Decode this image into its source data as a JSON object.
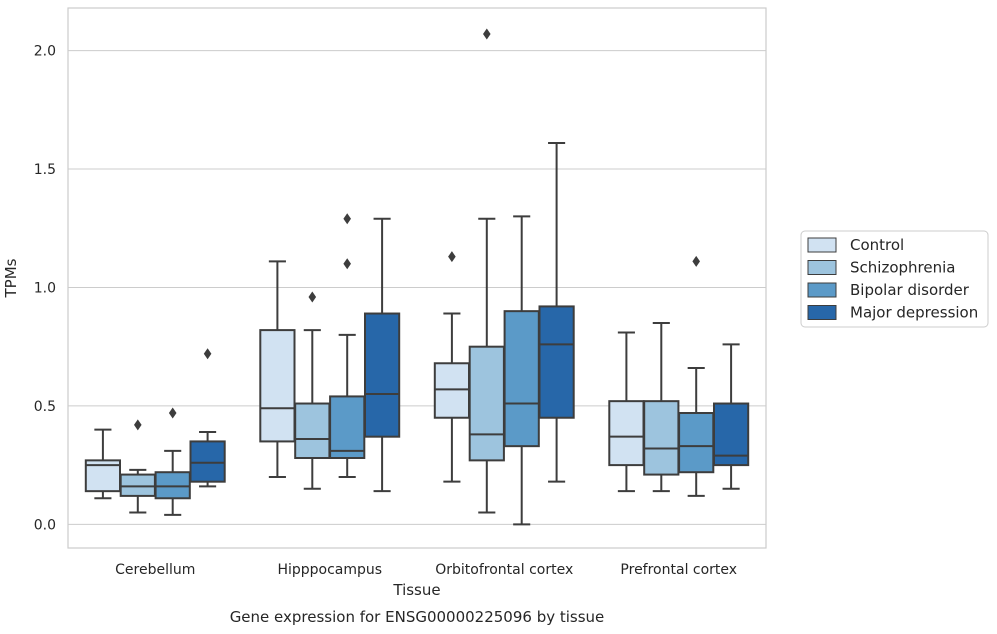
{
  "caption": "Gene expression for ENSG00000225096 by tissue",
  "chart_data": {
    "type": "boxplot",
    "xlabel": "Tissue",
    "ylabel": "TPMs",
    "ylim": [
      -0.1,
      2.18
    ],
    "yticks": [
      "0.0",
      "0.5",
      "1.0",
      "1.5",
      "2.0"
    ],
    "categories": [
      "Cerebellum",
      "Hipppocampus",
      "Orbitofrontal cortex",
      "Prefrontal cortex"
    ],
    "grid": true,
    "legend_position": "right",
    "series": [
      {
        "name": "Control",
        "color": "#d1e2f2",
        "boxes": [
          {
            "whislo": 0.11,
            "q1": 0.14,
            "med": 0.25,
            "q3": 0.27,
            "whishi": 0.4,
            "fliers": []
          },
          {
            "whislo": 0.2,
            "q1": 0.35,
            "med": 0.49,
            "q3": 0.82,
            "whishi": 1.11,
            "fliers": []
          },
          {
            "whislo": 0.18,
            "q1": 0.45,
            "med": 0.57,
            "q3": 0.68,
            "whishi": 0.89,
            "fliers": [
              1.13
            ]
          },
          {
            "whislo": 0.14,
            "q1": 0.25,
            "med": 0.37,
            "q3": 0.52,
            "whishi": 0.81,
            "fliers": []
          }
        ]
      },
      {
        "name": "Schizophrenia",
        "color": "#9dc4de",
        "boxes": [
          {
            "whislo": 0.05,
            "q1": 0.12,
            "med": 0.16,
            "q3": 0.21,
            "whishi": 0.23,
            "fliers": [
              0.42
            ]
          },
          {
            "whislo": 0.15,
            "q1": 0.28,
            "med": 0.36,
            "q3": 0.51,
            "whishi": 0.82,
            "fliers": [
              0.96
            ]
          },
          {
            "whislo": 0.05,
            "q1": 0.27,
            "med": 0.38,
            "q3": 0.75,
            "whishi": 1.29,
            "fliers": [
              2.07
            ]
          },
          {
            "whislo": 0.14,
            "q1": 0.21,
            "med": 0.32,
            "q3": 0.52,
            "whishi": 0.85,
            "fliers": []
          }
        ]
      },
      {
        "name": "Bipolar disorder",
        "color": "#5b9ac8",
        "boxes": [
          {
            "whislo": 0.04,
            "q1": 0.11,
            "med": 0.16,
            "q3": 0.22,
            "whishi": 0.31,
            "fliers": [
              0.47
            ]
          },
          {
            "whislo": 0.2,
            "q1": 0.28,
            "med": 0.31,
            "q3": 0.54,
            "whishi": 0.8,
            "fliers": [
              1.1,
              1.29
            ]
          },
          {
            "whislo": 0.0,
            "q1": 0.33,
            "med": 0.51,
            "q3": 0.9,
            "whishi": 1.3,
            "fliers": []
          },
          {
            "whislo": 0.12,
            "q1": 0.22,
            "med": 0.33,
            "q3": 0.47,
            "whishi": 0.66,
            "fliers": [
              1.11
            ]
          }
        ]
      },
      {
        "name": "Major depression",
        "color": "#2767a9",
        "boxes": [
          {
            "whislo": 0.16,
            "q1": 0.18,
            "med": 0.26,
            "q3": 0.35,
            "whishi": 0.39,
            "fliers": [
              0.72
            ]
          },
          {
            "whislo": 0.14,
            "q1": 0.37,
            "med": 0.55,
            "q3": 0.89,
            "whishi": 1.29,
            "fliers": []
          },
          {
            "whislo": 0.18,
            "q1": 0.45,
            "med": 0.76,
            "q3": 0.92,
            "whishi": 1.61,
            "fliers": []
          },
          {
            "whislo": 0.15,
            "q1": 0.25,
            "med": 0.29,
            "q3": 0.51,
            "whishi": 0.76,
            "fliers": []
          }
        ]
      }
    ]
  }
}
